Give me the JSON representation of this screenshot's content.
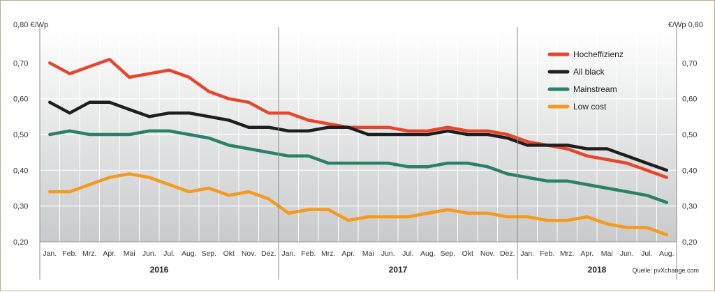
{
  "chart_data": {
    "type": "line",
    "y_unit_left": "0,80 €/Wp",
    "y_unit_right": "€/Wp 0,80",
    "ylim": [
      0.2,
      0.8
    ],
    "y_ticks": [
      "0,20",
      "0,30",
      "0,40",
      "0,50",
      "0,60",
      "0,70"
    ],
    "y_tick_values": [
      0.2,
      0.3,
      0.4,
      0.5,
      0.6,
      0.7
    ],
    "categories": [
      "Jan.",
      "Feb.",
      "Mrz.",
      "Apr.",
      "Mai",
      "Jun.",
      "Jul.",
      "Aug.",
      "Sep.",
      "Okt",
      "Nov.",
      "Dez.",
      "Jan.",
      "Feb.",
      "Mrz.",
      "Apr.",
      "Mai",
      "Jun.",
      "Jul.",
      "Aug.",
      "Sep.",
      "Okt",
      "Nov.",
      "Dez.",
      "Jan.",
      "Feb.",
      "Mrz.",
      "Apr.",
      "Mai",
      "Jun.",
      "Jul.",
      "Aug."
    ],
    "years": [
      {
        "label": "2016",
        "months": 12
      },
      {
        "label": "2017",
        "months": 12
      },
      {
        "label": "2018",
        "months": 8
      }
    ],
    "series": [
      {
        "name": "Hocheffizienz",
        "color": "#e8452a",
        "values": [
          0.7,
          0.67,
          0.69,
          0.71,
          0.66,
          0.67,
          0.68,
          0.66,
          0.62,
          0.6,
          0.59,
          0.56,
          0.56,
          0.54,
          0.53,
          0.52,
          0.52,
          0.52,
          0.51,
          0.51,
          0.52,
          0.51,
          0.51,
          0.5,
          0.48,
          0.47,
          0.46,
          0.44,
          0.43,
          0.42,
          0.4,
          0.38
        ]
      },
      {
        "name": "All black",
        "color": "#1e1e1e",
        "values": [
          0.59,
          0.56,
          0.59,
          0.59,
          0.57,
          0.55,
          0.56,
          0.56,
          0.55,
          0.54,
          0.52,
          0.52,
          0.51,
          0.51,
          0.52,
          0.52,
          0.5,
          0.5,
          0.5,
          0.5,
          0.51,
          0.5,
          0.5,
          0.49,
          0.47,
          0.47,
          0.47,
          0.46,
          0.46,
          0.44,
          0.42,
          0.4
        ]
      },
      {
        "name": "Mainstream",
        "color": "#2a8068",
        "values": [
          0.5,
          0.51,
          0.5,
          0.5,
          0.5,
          0.51,
          0.51,
          0.5,
          0.49,
          0.47,
          0.46,
          0.45,
          0.44,
          0.44,
          0.42,
          0.42,
          0.42,
          0.42,
          0.41,
          0.41,
          0.42,
          0.42,
          0.41,
          0.39,
          0.38,
          0.37,
          0.37,
          0.36,
          0.35,
          0.34,
          0.33,
          0.31
        ]
      },
      {
        "name": "Low cost",
        "color": "#f39a1f",
        "values": [
          0.34,
          0.34,
          0.36,
          0.38,
          0.39,
          0.38,
          0.36,
          0.34,
          0.35,
          0.33,
          0.34,
          0.32,
          0.28,
          0.29,
          0.29,
          0.26,
          0.27,
          0.27,
          0.27,
          0.28,
          0.29,
          0.28,
          0.28,
          0.27,
          0.27,
          0.26,
          0.26,
          0.27,
          0.25,
          0.24,
          0.24,
          0.22
        ]
      }
    ],
    "legend_position": "top-right",
    "grid": true,
    "source": "Quelle: pvXchange.com"
  }
}
